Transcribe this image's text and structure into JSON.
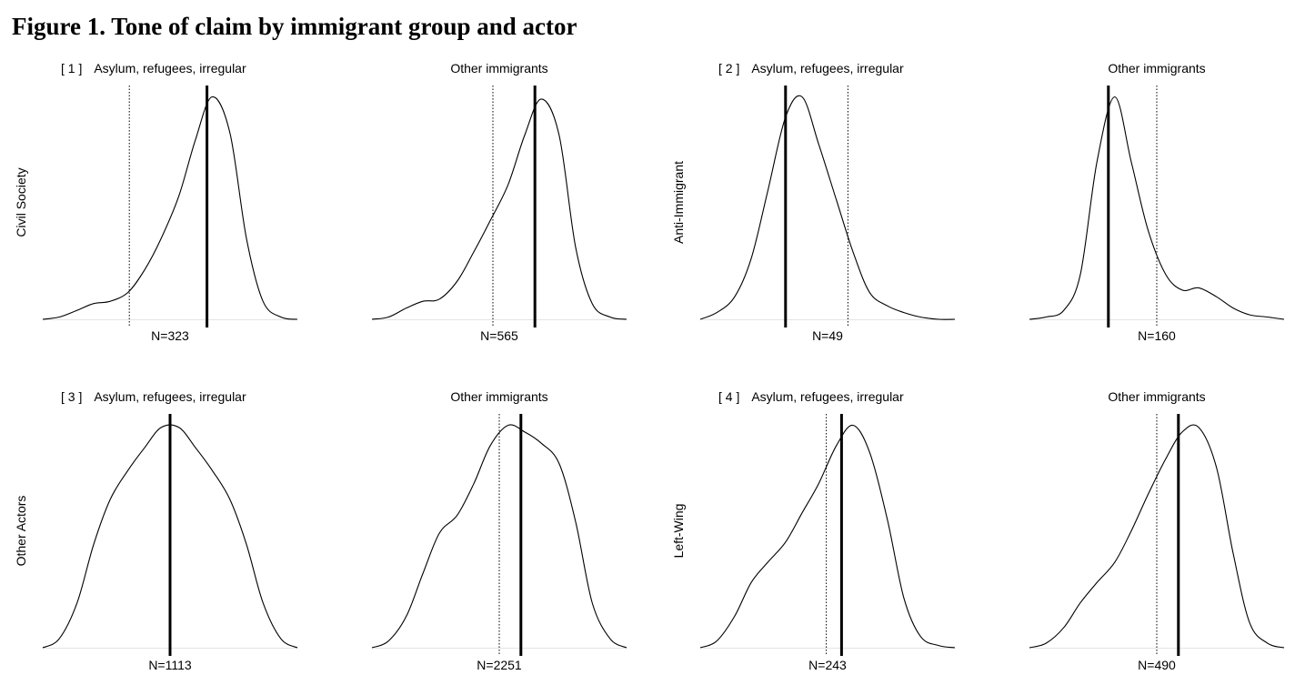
{
  "title": "Figure 1. Tone of claim by immigrant group and actor",
  "chart_data": [
    {
      "type": "area",
      "panel_label": "[ 1 ]",
      "actor": "Civil Society",
      "subplots": [
        {
          "group": "Asylum, refugees, irregular",
          "n_label": "N=323",
          "mean": 0.29,
          "reference": -0.32,
          "x": [
            -1.0,
            -0.87,
            -0.73,
            -0.6,
            -0.47,
            -0.33,
            -0.2,
            -0.07,
            0.07,
            0.2,
            0.33,
            0.47,
            0.6,
            0.73,
            0.87,
            1.0
          ],
          "density": [
            0.0,
            0.01,
            0.04,
            0.07,
            0.08,
            0.12,
            0.22,
            0.36,
            0.55,
            0.8,
            0.99,
            0.83,
            0.36,
            0.08,
            0.01,
            0.0
          ]
        },
        {
          "group": "Other immigrants",
          "n_label": "N=565",
          "mean": 0.28,
          "reference": -0.05,
          "x": [
            -1.0,
            -0.87,
            -0.73,
            -0.6,
            -0.47,
            -0.33,
            -0.2,
            -0.07,
            0.07,
            0.2,
            0.33,
            0.47,
            0.6,
            0.73,
            0.87,
            1.0
          ],
          "density": [
            0.0,
            0.01,
            0.05,
            0.08,
            0.09,
            0.17,
            0.3,
            0.44,
            0.6,
            0.82,
            0.98,
            0.82,
            0.32,
            0.07,
            0.01,
            0.0
          ]
        }
      ]
    },
    {
      "type": "area",
      "panel_label": "[ 2 ]",
      "actor": "Anti-Immigrant",
      "subplots": [
        {
          "group": "Asylum, refugees, irregular",
          "n_label": "N=49",
          "mean": -0.33,
          "reference": 0.16,
          "x": [
            -1.0,
            -0.87,
            -0.73,
            -0.6,
            -0.47,
            -0.33,
            -0.2,
            -0.07,
            0.07,
            0.2,
            0.33,
            0.47,
            0.6,
            0.73,
            0.87,
            1.0
          ],
          "density": [
            0.0,
            0.03,
            0.1,
            0.27,
            0.57,
            0.9,
            0.99,
            0.78,
            0.53,
            0.3,
            0.12,
            0.06,
            0.03,
            0.01,
            0.0,
            0.0
          ]
        },
        {
          "group": "Other immigrants",
          "n_label": "N=160",
          "mean": -0.38,
          "reference": 0.0,
          "x": [
            -1.0,
            -0.87,
            -0.73,
            -0.6,
            -0.47,
            -0.33,
            -0.2,
            -0.07,
            0.07,
            0.2,
            0.33,
            0.47,
            0.6,
            0.73,
            0.87,
            1.0
          ],
          "density": [
            0.0,
            0.01,
            0.04,
            0.2,
            0.7,
            0.99,
            0.7,
            0.4,
            0.2,
            0.13,
            0.14,
            0.1,
            0.05,
            0.02,
            0.01,
            0.0
          ]
        }
      ]
    },
    {
      "type": "area",
      "panel_label": "[ 3 ]",
      "actor": "Other Actors",
      "subplots": [
        {
          "group": "Asylum, refugees, irregular",
          "n_label": "N=1113",
          "mean": 0.0,
          "reference": 0.0,
          "x": [
            -1.0,
            -0.87,
            -0.73,
            -0.6,
            -0.47,
            -0.33,
            -0.2,
            -0.07,
            0.07,
            0.2,
            0.33,
            0.47,
            0.6,
            0.73,
            0.87,
            1.0
          ],
          "density": [
            0.0,
            0.04,
            0.2,
            0.46,
            0.66,
            0.79,
            0.89,
            0.98,
            0.98,
            0.89,
            0.79,
            0.66,
            0.46,
            0.2,
            0.04,
            0.0
          ]
        },
        {
          "group": "Other immigrants",
          "n_label": "N=2251",
          "mean": 0.17,
          "reference": 0.0,
          "x": [
            -1.0,
            -0.87,
            -0.73,
            -0.6,
            -0.47,
            -0.33,
            -0.2,
            -0.07,
            0.07,
            0.2,
            0.33,
            0.47,
            0.6,
            0.73,
            0.87,
            1.0
          ],
          "density": [
            0.0,
            0.03,
            0.14,
            0.33,
            0.51,
            0.59,
            0.73,
            0.9,
            0.99,
            0.96,
            0.91,
            0.82,
            0.56,
            0.2,
            0.04,
            0.0
          ]
        }
      ]
    },
    {
      "type": "area",
      "panel_label": "[ 4 ]",
      "actor": "Left-Wing",
      "subplots": [
        {
          "group": "Asylum, refugees, irregular",
          "n_label": "N=243",
          "mean": 0.11,
          "reference": -0.01,
          "x": [
            -1.0,
            -0.87,
            -0.73,
            -0.6,
            -0.47,
            -0.33,
            -0.2,
            -0.07,
            0.07,
            0.2,
            0.33,
            0.47,
            0.6,
            0.73,
            0.87,
            1.0
          ],
          "density": [
            0.0,
            0.03,
            0.14,
            0.29,
            0.38,
            0.47,
            0.6,
            0.73,
            0.9,
            0.99,
            0.87,
            0.57,
            0.22,
            0.05,
            0.01,
            0.0
          ]
        },
        {
          "group": "Other immigrants",
          "n_label": "N=490",
          "mean": 0.17,
          "reference": 0.0,
          "x": [
            -1.0,
            -0.87,
            -0.73,
            -0.6,
            -0.47,
            -0.33,
            -0.2,
            -0.07,
            0.07,
            0.2,
            0.33,
            0.47,
            0.6,
            0.73,
            0.87,
            1.0
          ],
          "density": [
            0.0,
            0.02,
            0.09,
            0.2,
            0.29,
            0.38,
            0.52,
            0.68,
            0.84,
            0.96,
            0.98,
            0.8,
            0.42,
            0.11,
            0.02,
            0.0
          ]
        }
      ]
    }
  ]
}
